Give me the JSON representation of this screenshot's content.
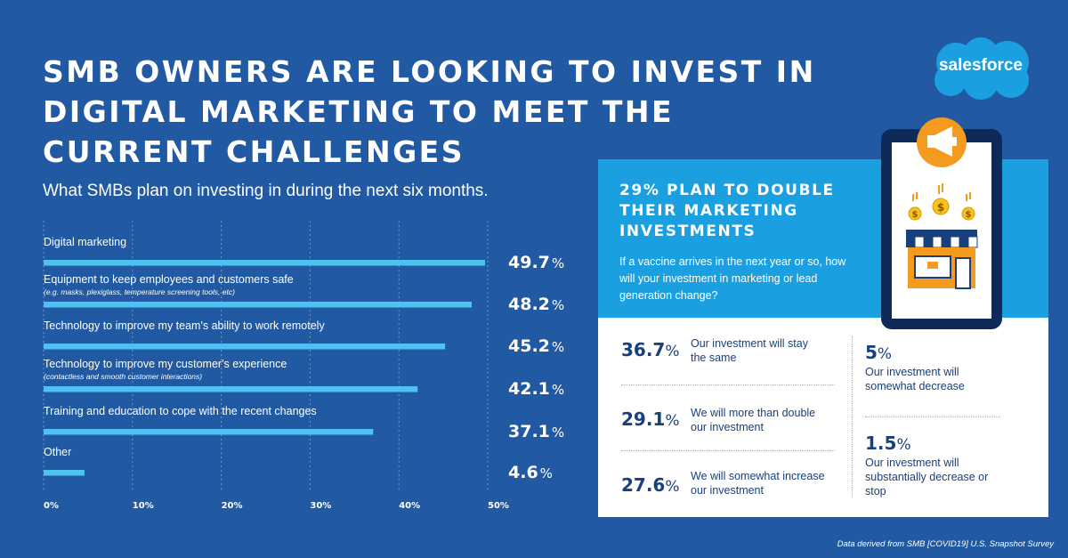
{
  "title_lines": [
    "SMB OWNERS ARE LOOKING TO INVEST IN",
    "DIGITAL MARKETING TO MEET THE",
    "CURRENT CHALLENGES"
  ],
  "subtitle": "What SMBs plan on investing in during the next six months.",
  "logo_text": "salesforce",
  "colors": {
    "background": "#215aa3",
    "bar": "#4fc3f0",
    "accent": "#1aa0e0",
    "dark_text": "#17407d",
    "store_orange": "#f39a1f",
    "coin": "#f6c21b"
  },
  "chart_data": {
    "type": "bar",
    "orientation": "horizontal",
    "categories": [
      "Digital marketing",
      "Equipment to keep employees and customers safe",
      "Technology to improve my team's ability to work remotely",
      "Technology to improve my customer's experience",
      "Training and education to cope with the recent changes",
      "Other"
    ],
    "notes": [
      "",
      "(e.g. masks, plexiglass, temperature screening tools, etc)",
      "",
      "(contactless and smooth customer interactions)",
      "",
      ""
    ],
    "values": [
      49.7,
      48.2,
      45.2,
      42.1,
      37.1,
      4.6
    ],
    "value_labels": [
      "49.7",
      "48.2",
      "45.2",
      "42.1",
      "37.1",
      "4.6"
    ],
    "value_unit": "%",
    "xlim": [
      0,
      50
    ],
    "x_ticks": [
      "0%",
      "10%",
      "20%",
      "30%",
      "40%",
      "50%"
    ],
    "grid": true
  },
  "infobox": {
    "title_lines": [
      "29% PLAN TO DOUBLE",
      "THEIR MARKETING",
      "INVESTMENTS"
    ],
    "question": "If a vaccine arrives in the next year or so, how will your investment in marketing or lead generation change?",
    "stats": [
      {
        "value": "36.7",
        "unit": "%",
        "label": "Our investment will stay the same"
      },
      {
        "value": "29.1",
        "unit": "%",
        "label": "We will more than double our investment"
      },
      {
        "value": "27.6",
        "unit": "%",
        "label": "We will somewhat increase our investment"
      },
      {
        "value": "5",
        "unit": "%",
        "label": "Our investment will somewhat decrease"
      },
      {
        "value": "1.5",
        "unit": "%",
        "label": "Our investment will substantially decrease or stop"
      }
    ]
  },
  "source": "Data derived from SMB [COVID19] U.S. Snapshot Survey"
}
